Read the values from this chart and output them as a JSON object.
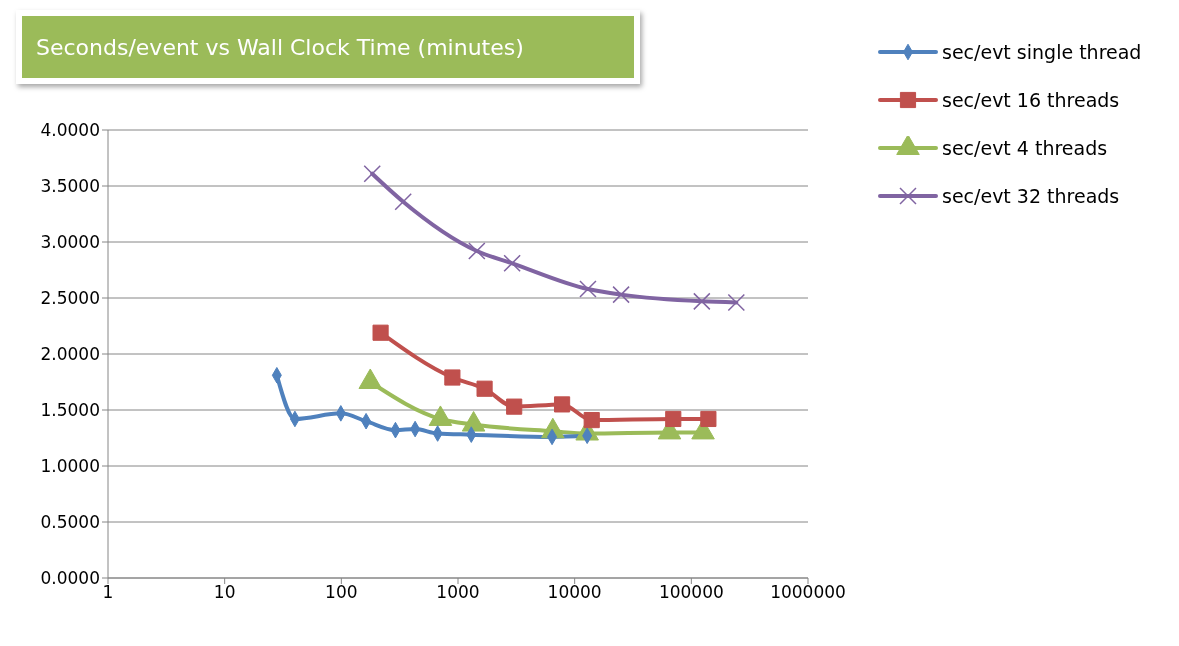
{
  "chart_data": {
    "type": "line",
    "title": "Seconds/event vs Wall Clock Time (minutes)",
    "log": "x",
    "grid": "y",
    "legend": "top right",
    "line_style": "solid",
    "xlim": [
      1,
      1000000
    ],
    "xticks": [
      1,
      10,
      100,
      1000,
      10000,
      100000,
      1000000
    ],
    "ylim": [
      0,
      4
    ],
    "yticks": [
      {
        "value": 0,
        "label": "0.0000"
      },
      {
        "value": 0.5,
        "label": "0.5000"
      },
      {
        "value": 1,
        "label": "1.0000"
      },
      {
        "value": 1.5,
        "label": "1.5000"
      },
      {
        "value": 2,
        "label": "2.0000"
      },
      {
        "value": 2.5,
        "label": "2.5000"
      },
      {
        "value": 3,
        "label": "3.0000"
      },
      {
        "value": 3.5,
        "label": "3.5000"
      },
      {
        "value": 4,
        "label": "4.0000"
      }
    ],
    "series": [
      {
        "name": "sec/evt single thread",
        "color": "#4f81bd",
        "marker": "diamond",
        "x": [
          28,
          40,
          99,
          163,
          291,
          429,
          669,
          1300,
          6400,
          12800
        ],
        "values": [
          1.81,
          1.42,
          1.47,
          1.4,
          1.32,
          1.33,
          1.29,
          1.28,
          1.26,
          1.27
        ]
      },
      {
        "name": "sec/evt 16 threads",
        "color": "#c0504d",
        "marker": "square",
        "x": [
          217,
          895,
          1690,
          3030,
          7800,
          14000,
          70000,
          140000
        ],
        "values": [
          2.19,
          1.79,
          1.69,
          1.53,
          1.55,
          1.41,
          1.42,
          1.42
        ]
      },
      {
        "name": "sec/evt 4 threads",
        "color": "#9bbb59",
        "marker": "triangle",
        "x": [
          177,
          707,
          1360,
          6500,
          12800,
          65000,
          126000
        ],
        "values": [
          1.75,
          1.42,
          1.37,
          1.31,
          1.29,
          1.3,
          1.3
        ]
      },
      {
        "name": "sec/evt 32 threads",
        "color": "#8064a2",
        "marker": "cross",
        "x": [
          184,
          339,
          1450,
          2910,
          13000,
          25000,
          123000,
          243000
        ],
        "values": [
          3.61,
          3.36,
          2.92,
          2.81,
          2.58,
          2.53,
          2.47,
          2.46
        ]
      }
    ]
  }
}
